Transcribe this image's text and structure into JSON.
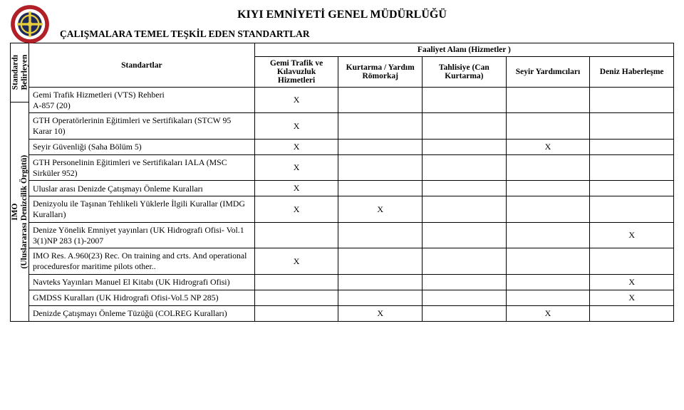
{
  "header": {
    "org_title": "KIYI EMNİYETİ GENEL MÜDÜRLÜĞÜ",
    "section_title": "ÇALIŞMALARA TEMEL TEŞKİL EDEN STANDARTLAR"
  },
  "side": {
    "top_line1": "Standardı",
    "top_line2": "Belirleyen",
    "bottom_line1": "IMO",
    "bottom_line2": "(Uluslararası Denizcilik Örgütü)"
  },
  "columns": {
    "standards": "Standartlar",
    "services_group": "Faaliyet Alanı (Hizmetler )",
    "c1": "Gemi Trafik ve Kılavuzluk Hizmetleri",
    "c2": "Kurtarma / Yardım Römorkaj",
    "c3": "Tahlisiye (Can Kurtarma)",
    "c4": "Seyir Yardımcıları",
    "c5": "Deniz Haberleşme"
  },
  "rows": [
    {
      "label": "Gemi Trafik Hizmetleri (VTS) Rehberi\nA-857 (20)",
      "marks": [
        "X",
        "",
        "",
        "",
        ""
      ]
    },
    {
      "label": "GTH Operatörlerinin Eğitimleri ve Sertifikaları (STCW 95 Karar 10)",
      "marks": [
        "X",
        "",
        "",
        "",
        ""
      ]
    },
    {
      "label": "Seyir Güvenliği (Saha Bölüm 5)",
      "marks": [
        "X",
        "",
        "",
        "X",
        ""
      ]
    },
    {
      "label": "GTH Personelinin Eğitimleri ve Sertifikaları IALA (MSC Sirküler 952)",
      "marks": [
        "X",
        "",
        "",
        "",
        ""
      ]
    },
    {
      "label": "Uluslar arası Denizde Çatışmayı Önleme Kuralları",
      "marks": [
        "X",
        "",
        "",
        "",
        ""
      ]
    },
    {
      "label": "Denizyolu ile Taşınan Tehlikeli Yüklerle İlgili Kurallar (IMDG Kuralları)",
      "marks": [
        "X",
        "X",
        "",
        "",
        ""
      ]
    },
    {
      "label": "Denize Yönelik Emniyet yayınları (UK Hidrografi Ofisi- Vol.1 3(1)NP 283 (1)-2007",
      "marks": [
        "",
        "",
        "",
        "",
        "X"
      ]
    },
    {
      "label": "IMO Res. A.960(23) Rec. On training and crts. And operational proceduresfor maritime pilots other..",
      "marks": [
        "X",
        "",
        "",
        "",
        ""
      ]
    },
    {
      "label": "Navteks Yayınları Manuel El Kitabı (UK Hidrografi Ofisi)",
      "marks": [
        "",
        "",
        "",
        "",
        "X"
      ]
    },
    {
      "label": "GMDSS Kuralları (UK Hidrografi Ofisi-Vol.5 NP 285)",
      "marks": [
        "",
        "",
        "",
        "",
        "X"
      ]
    },
    {
      "label": "Denizde Çatışmayı Önleme Tüzüğü (COLREG Kuralları)",
      "marks": [
        "",
        "X",
        "",
        "X",
        ""
      ]
    }
  ],
  "style": {
    "border_color": "#000000",
    "background": "#ffffff",
    "text_color": "#000000",
    "logo_red": "#b11f27",
    "logo_navy": "#1f2a5a",
    "logo_gold": "#e7cf3c"
  }
}
